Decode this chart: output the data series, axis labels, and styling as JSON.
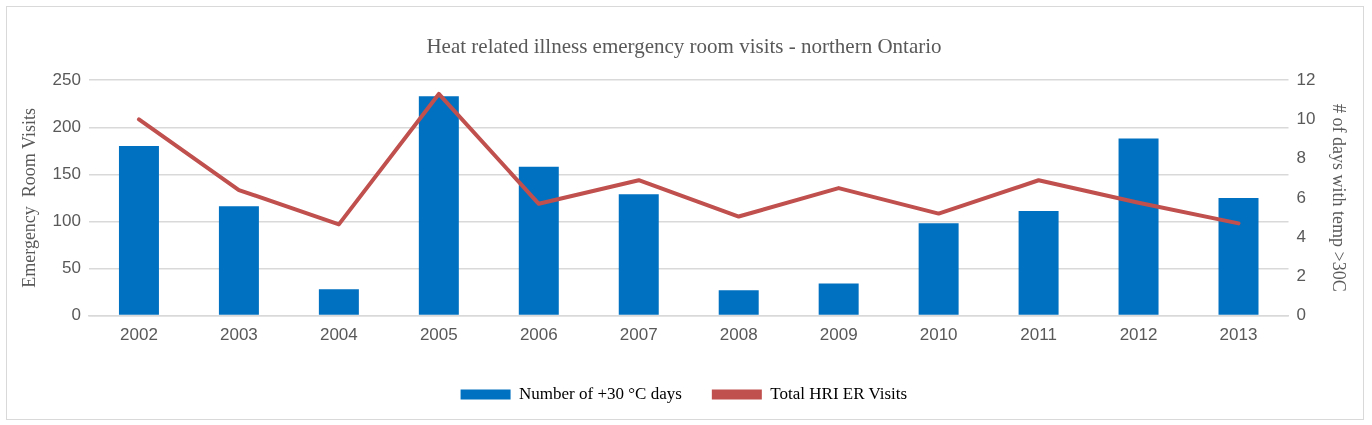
{
  "chart_data": {
    "type": "bar",
    "title": "Heat related illness emergency room visits - northern Ontario",
    "ylabel": "Emergency  Room Visits",
    "y2label": "# of days with temp >30C",
    "categories": [
      "2002",
      "2003",
      "2004",
      "2005",
      "2006",
      "2007",
      "2008",
      "2009",
      "2010",
      "2011",
      "2012",
      "2013"
    ],
    "series": [
      {
        "name": "Number of +30 °C days",
        "color": "#0070c0",
        "values": [
          180,
          116,
          28,
          233,
          158,
          129,
          27,
          34,
          98,
          111,
          188,
          125
        ]
      },
      {
        "name": "Total HRI ER Visits",
        "type": "line",
        "axis": "y2",
        "color": "#c0504d",
        "marker": "none",
        "values": [
          10,
          6.4,
          4.65,
          11.3,
          5.7,
          6.9,
          5.05,
          6.5,
          5.2,
          6.9,
          5.75,
          4.7
        ]
      }
    ],
    "ylim": [
      0,
      250
    ],
    "yticks": [
      0,
      50,
      100,
      150,
      200,
      250
    ],
    "y2lim": [
      0,
      12
    ],
    "y2ticks": [
      0,
      2,
      4,
      6,
      8,
      10,
      12
    ],
    "grid": "y",
    "legend": "bottom"
  }
}
